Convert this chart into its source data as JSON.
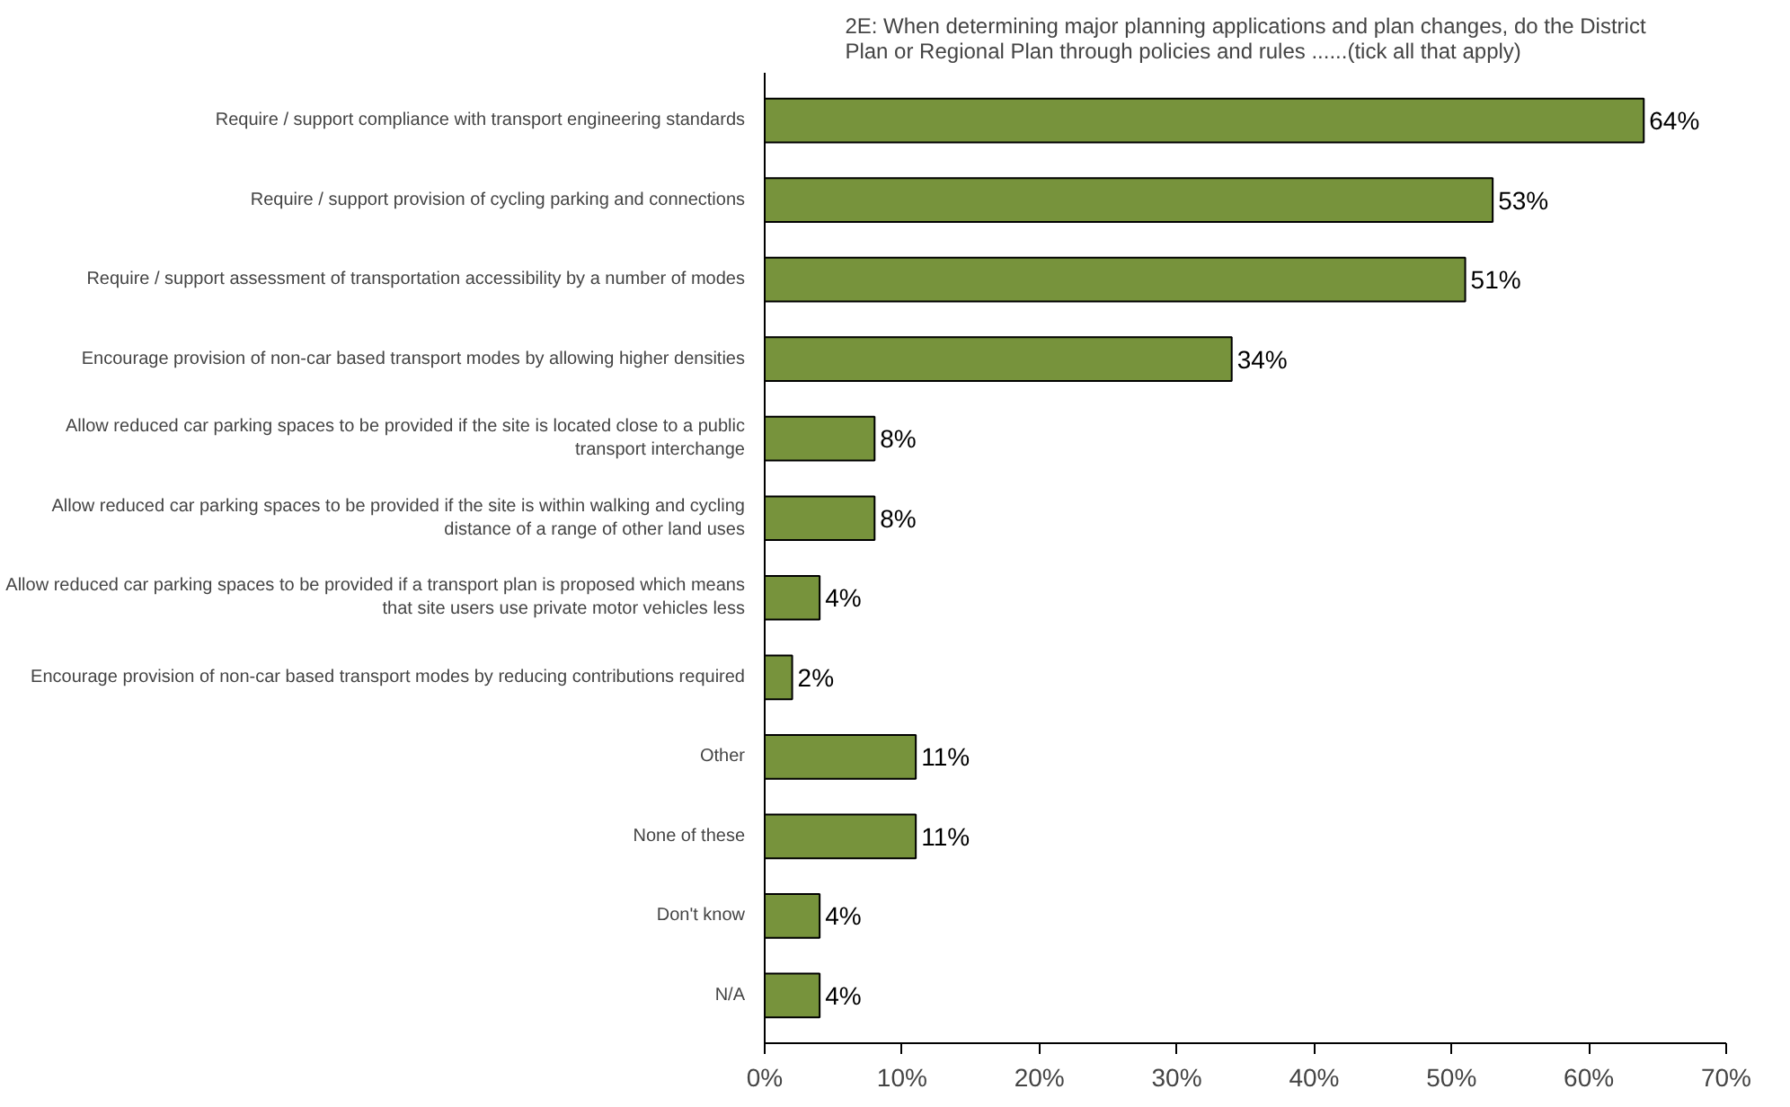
{
  "chart_data": {
    "type": "bar",
    "orientation": "horizontal",
    "title": "2E: When determining major planning applications and plan changes, do the District Plan or Regional Plan through policies and rules ......(tick all that apply)",
    "categories": [
      "Require / support compliance with transport engineering standards",
      "Require / support provision of cycling parking and connections",
      "Require / support assessment of transportation accessibility by a number of modes",
      "Encourage provision of non-car based transport modes by allowing higher densities",
      "Allow reduced car parking spaces to be provided if the site is located close to a public transport interchange",
      "Allow reduced car parking spaces to be provided if the site is within walking and cycling distance of a range of other land uses",
      "Allow reduced car parking spaces to be provided if a transport plan is proposed which means that site users use private motor vehicles less",
      "Encourage provision of non-car based transport modes by reducing contributions required",
      "Other",
      "None of these",
      "Don't know",
      "N/A"
    ],
    "values": [
      64,
      53,
      51,
      34,
      8,
      8,
      4,
      2,
      11,
      11,
      4,
      4
    ],
    "value_labels": [
      "64%",
      "53%",
      "51%",
      "34%",
      "8%",
      "8%",
      "4%",
      "2%",
      "11%",
      "11%",
      "4%",
      "4%"
    ],
    "color": "#77933c",
    "xlim": [
      0,
      70
    ],
    "xticks": [
      {
        "value": 0,
        "label": "0%"
      },
      {
        "value": 10,
        "label": "10%"
      },
      {
        "value": 20,
        "label": "20%"
      },
      {
        "value": 30,
        "label": "30%"
      },
      {
        "value": 40,
        "label": "40%"
      },
      {
        "value": 50,
        "label": "50%"
      },
      {
        "value": 60,
        "label": "60%"
      },
      {
        "value": 70,
        "label": "70%"
      }
    ]
  }
}
